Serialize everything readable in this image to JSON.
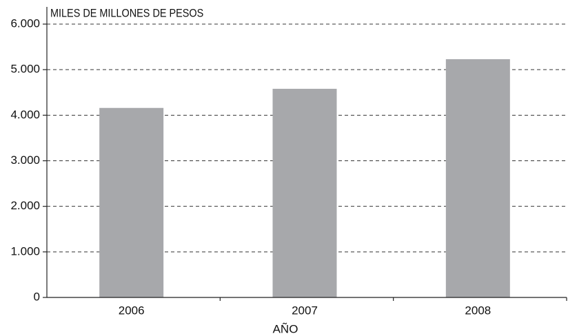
{
  "chart_data": {
    "type": "bar",
    "y_label": "MILES DE MILLONES DE PESOS",
    "x_label": "AÑO",
    "categories": [
      "2006",
      "2007",
      "2008"
    ],
    "values": [
      4160,
      4580,
      5230
    ],
    "color": "#a7a8ab",
    "ylim": [
      0,
      6000
    ],
    "yticks": [
      0,
      {
        "value": 1000,
        "label": "1.000"
      },
      {
        "value": 2000,
        "label": "2.000"
      },
      {
        "value": 3000,
        "label": "3.000"
      },
      {
        "value": 4000,
        "label": "4.000"
      },
      {
        "value": 5000,
        "label": "5.000"
      },
      {
        "value": 6000,
        "label": "6.000"
      }
    ],
    "grid": true
  }
}
